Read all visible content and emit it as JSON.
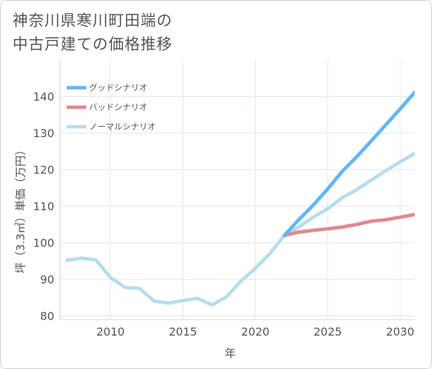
{
  "title_lines": [
    "神奈川県寒川町田端の",
    "中古戸建ての価格推移"
  ],
  "chart_data": {
    "type": "line",
    "title": "神奈川県寒川町田端の中古戸建ての価格推移",
    "xlabel": "年",
    "ylabel": "坪（3.3㎡）単価（万円）",
    "xlim": [
      2006.5,
      2031
    ],
    "ylim": [
      79,
      150
    ],
    "xticks": [
      2010,
      2015,
      2020,
      2025,
      2030
    ],
    "yticks": [
      80,
      90,
      100,
      110,
      120,
      130,
      140
    ],
    "grid": true,
    "legend_position": "top-left",
    "series": [
      {
        "name": "グッドシナリオ",
        "color": "#64b5f6",
        "x": [
          2022,
          2023,
          2024,
          2025,
          2026,
          2027,
          2028,
          2029,
          2030,
          2031
        ],
        "y": [
          102,
          106.3,
          110.3,
          114.7,
          119.5,
          123.5,
          127.8,
          132.2,
          136.6,
          141.1
        ]
      },
      {
        "name": "バッドシナリオ",
        "color": "#e08890",
        "x": [
          2022,
          2023,
          2024,
          2025,
          2026,
          2027,
          2028,
          2029,
          2030,
          2031
        ],
        "y": [
          102,
          102.9,
          103.4,
          103.8,
          104.3,
          105,
          105.9,
          106.3,
          107,
          107.7
        ]
      },
      {
        "name": "ノーマルシナリオ",
        "color": "#b8dcec",
        "x": [
          2007,
          2008,
          2009,
          2010,
          2011,
          2012,
          2013,
          2014,
          2015,
          2016,
          2017,
          2018,
          2019,
          2020,
          2021,
          2022,
          2023,
          2024,
          2025,
          2026,
          2027,
          2028,
          2029,
          2030,
          2031
        ],
        "y": [
          95.2,
          95.8,
          95.3,
          90.5,
          87.8,
          87.5,
          84.1,
          83.5,
          84.2,
          84.8,
          83.0,
          85.2,
          89.5,
          93.0,
          97.0,
          102,
          104.3,
          107,
          109.3,
          112.3,
          114.5,
          117.1,
          119.7,
          122.1,
          124.4
        ]
      }
    ]
  }
}
